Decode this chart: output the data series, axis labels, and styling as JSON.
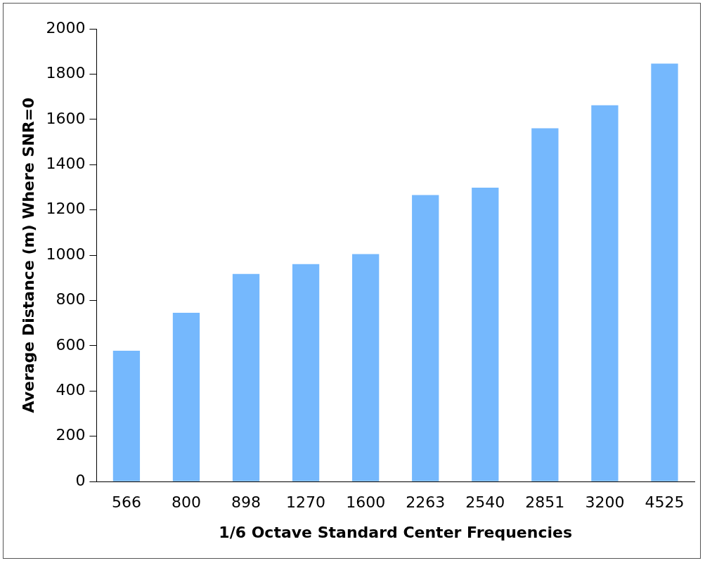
{
  "chart_data": {
    "type": "bar",
    "xlabel": "1/6 Octave Standard Center Frequencies",
    "ylabel": "Average Distance (m) Where SNR=0",
    "categories": [
      "566",
      "800",
      "898",
      "1270",
      "1600",
      "2263",
      "2540",
      "2851",
      "3200",
      "4525"
    ],
    "values": [
      578,
      746,
      917,
      961,
      1005,
      1266,
      1298,
      1561,
      1662,
      1846
    ],
    "color": "#75b8fd",
    "ylim": [
      0,
      2000
    ],
    "yticks": [
      0,
      200,
      400,
      600,
      800,
      1000,
      1200,
      1400,
      1600,
      1800,
      2000
    ],
    "grid": false,
    "legend": false
  }
}
